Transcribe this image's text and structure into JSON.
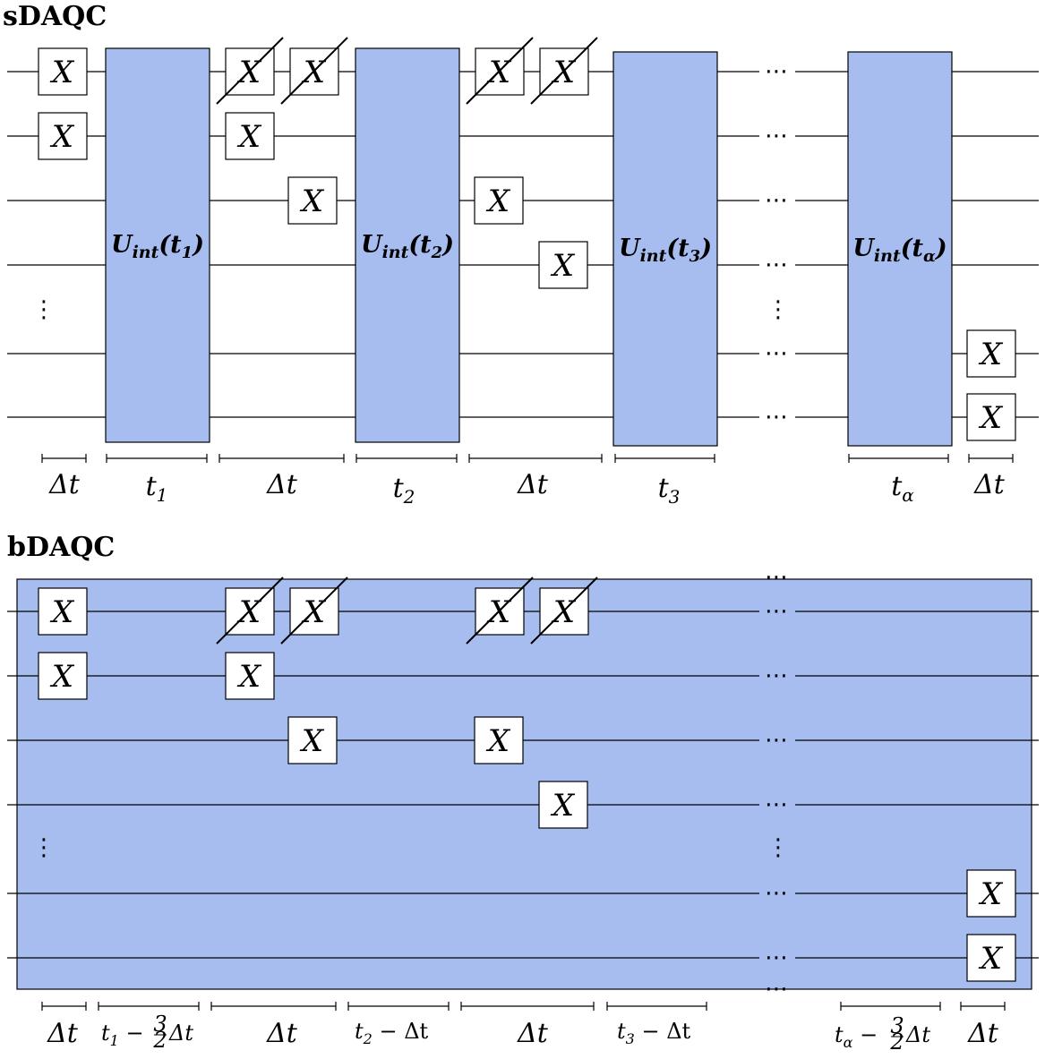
{
  "colors": {
    "block_fill": "#a7bdf0",
    "block_stroke": "#000000",
    "gate_fill": "#ffffff",
    "wire": "#000000"
  },
  "gate_label": "X",
  "hdots": "⋯",
  "vdots": "⋮",
  "sdaqc": {
    "title": "sDAQC",
    "unitaries": [
      {
        "label": "U",
        "sub": "int",
        "arg": "t",
        "argsub": "1"
      },
      {
        "label": "U",
        "sub": "int",
        "arg": "t",
        "argsub": "2"
      },
      {
        "label": "U",
        "sub": "int",
        "arg": "t",
        "argsub": "3"
      },
      {
        "label": "U",
        "sub": "int",
        "arg": "t",
        "argsub": "α"
      }
    ],
    "time_labels": [
      {
        "main": "Δt",
        "sub": ""
      },
      {
        "main": "t",
        "sub": "1"
      },
      {
        "main": "Δt",
        "sub": ""
      },
      {
        "main": "t",
        "sub": "2"
      },
      {
        "main": "Δt",
        "sub": ""
      },
      {
        "main": "t",
        "sub": "3"
      },
      {
        "main": "t",
        "sub": "α"
      },
      {
        "main": "Δt",
        "sub": ""
      }
    ]
  },
  "bdaqc": {
    "title": "bDAQC",
    "time_labels": [
      {
        "main": "Δt",
        "sub": "",
        "tail": ""
      },
      {
        "main": "t",
        "sub": "1",
        "tail": " − ",
        "frac_num": "3",
        "frac_den": "2",
        "end": "Δt"
      },
      {
        "main": "Δt",
        "sub": "",
        "tail": ""
      },
      {
        "main": "t",
        "sub": "2",
        "tail": " − Δt"
      },
      {
        "main": "Δt",
        "sub": "",
        "tail": ""
      },
      {
        "main": "t",
        "sub": "3",
        "tail": " − Δt"
      },
      {
        "main": "t",
        "sub": "α",
        "tail": " − ",
        "frac_num": "3",
        "frac_den": "2",
        "end": "Δt"
      },
      {
        "main": "Δt",
        "sub": "",
        "tail": ""
      }
    ]
  }
}
